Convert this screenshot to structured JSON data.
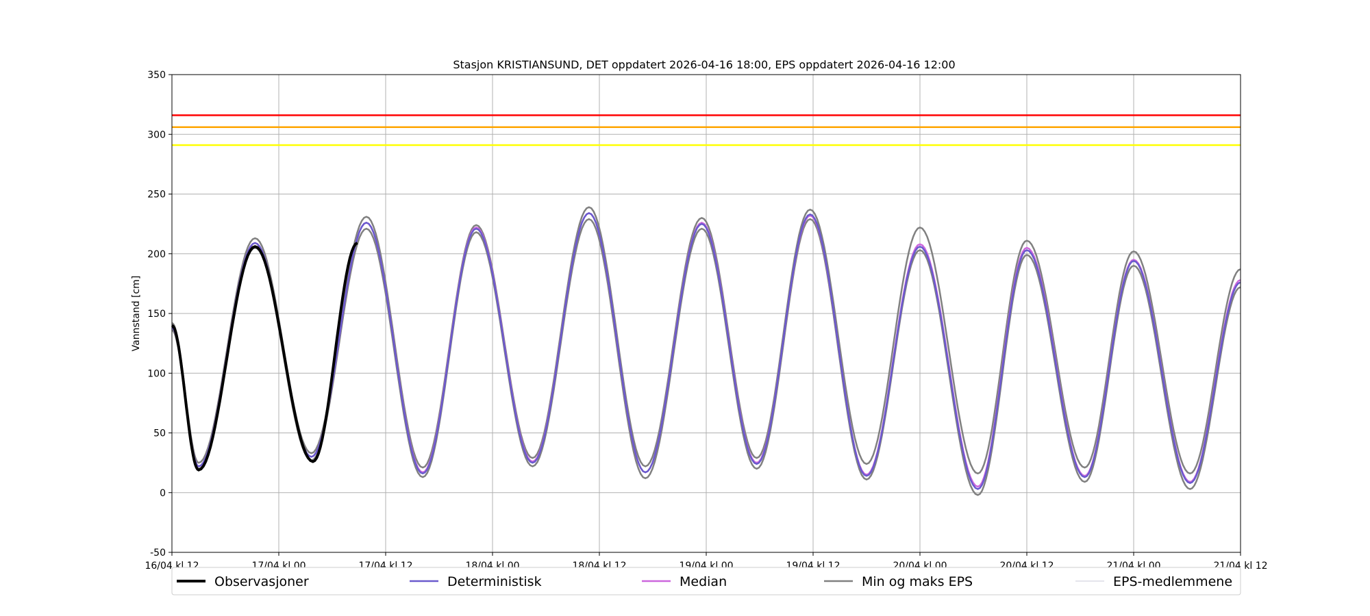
{
  "chart_data": {
    "type": "line",
    "title": "Stasjon KRISTIANSUND, DET oppdatert 2026-04-16 18:00, EPS oppdatert 2026-04-16 12:00",
    "xlabel": "",
    "ylabel": "Vannstand [cm]",
    "ylim": [
      -50,
      350
    ],
    "yticks": [
      -50,
      0,
      50,
      100,
      150,
      200,
      250,
      300,
      350
    ],
    "xlim": [
      "16/04 kl 12",
      "21/04 kl 12"
    ],
    "xticks": [
      "16/04 kl 12",
      "17/04 kl 00",
      "17/04 kl 12",
      "18/04 kl 00",
      "18/04 kl 12",
      "19/04 kl 00",
      "19/04 kl 12",
      "20/04 kl 00",
      "20/04 kl 12",
      "21/04 kl 00",
      "21/04 kl 12"
    ],
    "grid": true,
    "legend_position": "bottom",
    "thresholds": [
      {
        "value": 316,
        "color": "#ff0000"
      },
      {
        "value": 306,
        "color": "#ffa500"
      },
      {
        "value": 291,
        "color": "#ffff00"
      }
    ],
    "series": [
      {
        "name": "Observasjoner",
        "color": "#000000",
        "extrema": [
          [
            "16/04 12:00",
            140
          ],
          [
            "16/04 15:00",
            19
          ],
          [
            "16/04 21:20",
            206
          ],
          [
            "17/04 03:50",
            26
          ],
          [
            "17/04 08:50",
            209
          ]
        ]
      },
      {
        "name": "Deterministisk",
        "color": "#6a5acd",
        "extrema": [
          [
            "16/04 12:00",
            138
          ],
          [
            "16/04 15:00",
            22
          ],
          [
            "16/04 21:20",
            209
          ],
          [
            "17/04 03:40",
            30
          ],
          [
            "17/04 09:50",
            226
          ],
          [
            "17/04 16:10",
            16
          ],
          [
            "17/04 22:10",
            221
          ],
          [
            "18/04 04:30",
            25
          ],
          [
            "18/04 10:50",
            234
          ],
          [
            "18/04 17:10",
            17
          ],
          [
            "18/04 23:30",
            225
          ],
          [
            "19/04 05:40",
            24
          ],
          [
            "19/04 11:40",
            233
          ],
          [
            "19/04 18:00",
            14
          ],
          [
            "20/04 00:00",
            206
          ],
          [
            "20/04 06:30",
            3
          ],
          [
            "20/04 12:00",
            203
          ],
          [
            "20/04 18:30",
            13
          ],
          [
            "21/04 00:00",
            194
          ],
          [
            "21/04 06:20",
            8
          ],
          [
            "21/04 12:00",
            176
          ]
        ]
      },
      {
        "name": "Median",
        "color": "#cc66dd",
        "extrema": [
          [
            "16/04 12:00",
            138
          ],
          [
            "16/04 15:00",
            22
          ],
          [
            "16/04 21:20",
            209
          ],
          [
            "17/04 03:40",
            30
          ],
          [
            "17/04 09:50",
            226
          ],
          [
            "17/04 16:10",
            17
          ],
          [
            "17/04 22:10",
            222
          ],
          [
            "18/04 04:30",
            26
          ],
          [
            "18/04 10:50",
            234
          ],
          [
            "18/04 17:10",
            17
          ],
          [
            "18/04 23:30",
            226
          ],
          [
            "19/04 05:40",
            25
          ],
          [
            "19/04 11:40",
            232
          ],
          [
            "19/04 18:00",
            15
          ],
          [
            "20/04 00:00",
            208
          ],
          [
            "20/04 06:30",
            5
          ],
          [
            "20/04 12:00",
            205
          ],
          [
            "20/04 18:30",
            14
          ],
          [
            "21/04 00:00",
            195
          ],
          [
            "21/04 06:20",
            9
          ],
          [
            "21/04 12:00",
            178
          ]
        ]
      },
      {
        "name": "Min og maks EPS",
        "color": "#808080",
        "extrema_min": [
          [
            "16/04 12:00",
            136
          ],
          [
            "16/04 15:00",
            20
          ],
          [
            "16/04 21:20",
            205
          ],
          [
            "17/04 03:40",
            27
          ],
          [
            "17/04 09:50",
            221
          ],
          [
            "17/04 16:10",
            13
          ],
          [
            "17/04 22:10",
            218
          ],
          [
            "18/04 04:30",
            22
          ],
          [
            "18/04 10:50",
            229
          ],
          [
            "18/04 17:10",
            12
          ],
          [
            "18/04 23:30",
            221
          ],
          [
            "19/04 05:40",
            20
          ],
          [
            "19/04 11:40",
            229
          ],
          [
            "19/04 18:00",
            11
          ],
          [
            "20/04 00:00",
            203
          ],
          [
            "20/04 06:30",
            -2
          ],
          [
            "20/04 12:00",
            199
          ],
          [
            "20/04 18:30",
            9
          ],
          [
            "21/04 00:00",
            190
          ],
          [
            "21/04 06:20",
            3
          ],
          [
            "21/04 12:00",
            172
          ]
        ],
        "extrema_max": [
          [
            "16/04 12:00",
            142
          ],
          [
            "16/04 15:00",
            25
          ],
          [
            "16/04 21:20",
            213
          ],
          [
            "17/04 03:40",
            33
          ],
          [
            "17/04 09:50",
            231
          ],
          [
            "17/04 16:10",
            21
          ],
          [
            "17/04 22:10",
            224
          ],
          [
            "18/04 04:30",
            29
          ],
          [
            "18/04 10:50",
            239
          ],
          [
            "18/04 17:10",
            22
          ],
          [
            "18/04 23:30",
            230
          ],
          [
            "19/04 05:40",
            29
          ],
          [
            "19/04 11:40",
            237
          ],
          [
            "19/04 18:00",
            24
          ],
          [
            "20/04 00:00",
            222
          ],
          [
            "20/04 06:30",
            16
          ],
          [
            "20/04 12:00",
            211
          ],
          [
            "20/04 18:30",
            21
          ],
          [
            "21/04 00:00",
            202
          ],
          [
            "21/04 06:20",
            16
          ],
          [
            "21/04 12:00",
            187
          ]
        ]
      },
      {
        "name": "EPS-medlemmene",
        "color": "#c8c8d8"
      }
    ]
  }
}
